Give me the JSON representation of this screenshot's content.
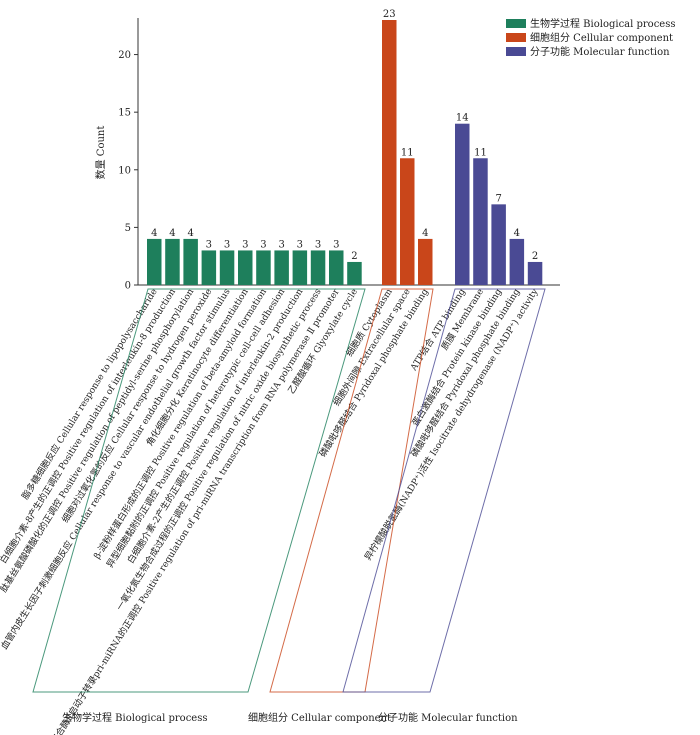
{
  "chart_data": {
    "type": "bar",
    "ylabel": "数量 Count",
    "ylim": [
      0,
      23
    ],
    "yticks": [
      0,
      5,
      10,
      15,
      20
    ],
    "grid": false,
    "legend_position": "top-right",
    "series": [
      {
        "name": "生物学过程 Biological process",
        "group_label": "生物学过程 Biological process",
        "color": "#1e7f5c",
        "categories": [
          "脂多糖细胞反应 Cellular response to lipopolysaccharide",
          "白细胞介素-8产生的正调控 Positive regulation of interleukin-8 production",
          "肽基丝氨酸磷酸化的正调控 Positive regulation of peptidyl-serine phosphorylation",
          "细胞对过氧化氢的反应 Cellular response to hydrogen peroxide",
          "血管内皮生长因子刺激细胞反应 Cellular response to vascular endothelial growth factor stimulus",
          "角化细胞分化 Keratinocyte differentiation",
          "β-淀粉样蛋白形成的正调控 Positive regulation of beta-amyloid formation",
          "异型细胞黏附的正调控 Positive regulation of heterotypic cell-cell adhesion",
          "白细胞介素-2产生的正调控 Positive regulation of interleukin-2 production",
          "一氧化氮生物合成过程的正调控 Positive regulation of nitric oxide biosynthetic process",
          "RNA聚合酶Ⅱ启动子转录pri-miRNA的正调控 Positive regulation of pri-miRNA transcription from RNA polymerase Ⅱ promoter",
          "乙醛酸循环 Glyoxylate cycle"
        ],
        "values": [
          4,
          4,
          4,
          3,
          3,
          3,
          3,
          3,
          3,
          3,
          3,
          2
        ]
      },
      {
        "name": "细胞组分 Cellular component",
        "group_label": "细胞组分 Cellular component",
        "color": "#c9461a",
        "categories": [
          "细胞质 Cytoplasm",
          "细胞外间隙 Extracellular space",
          "磷酸吡哆醛结合 Pyridoxal phosphate binding"
        ],
        "values": [
          23,
          11,
          4
        ]
      },
      {
        "name": "分子功能 Molecular function",
        "group_label": "分子功能 Molecular function",
        "color": "#4a4a94",
        "categories": [
          "ATP结合 ATP binding",
          "质膜 Membrane",
          "蛋白激酶结合 Protein kinase binding",
          "磷酸吡哆醛结合 Pyridoxal phosphate binding",
          "异柠檬酸脱氢酶(NADP⁺)活性 Isocitrate dehydrogenase (NADP⁺) activity"
        ],
        "values": [
          14,
          11,
          7,
          4,
          2
        ]
      }
    ]
  }
}
